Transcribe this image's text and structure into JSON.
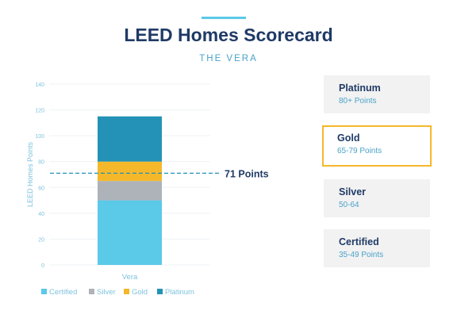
{
  "header": {
    "title": "LEED Homes Scorecard",
    "subtitle": "THE VERA"
  },
  "colors": {
    "title": "#1f3a66",
    "accent": "#5bc9e8",
    "certified": "#5bc9e8",
    "silver": "#aeb3ba",
    "gold": "#f5b82a",
    "platinum": "#2492b6",
    "highlight_border": "#f5b82a"
  },
  "chart_data": {
    "type": "bar",
    "stacked": true,
    "categories": [
      "Vera"
    ],
    "series": [
      {
        "name": "Certified",
        "values": [
          50
        ],
        "color": "#5bc9e8"
      },
      {
        "name": "Silver",
        "values": [
          15
        ],
        "color": "#aeb3ba"
      },
      {
        "name": "Gold",
        "values": [
          15
        ],
        "color": "#f5b82a"
      },
      {
        "name": "Platinum",
        "values": [
          35
        ],
        "color": "#2492b6"
      }
    ],
    "ylabel": "LEED Homes Points",
    "ylim": [
      0,
      140
    ],
    "yticks": [
      0,
      20,
      40,
      60,
      80,
      100,
      120,
      140
    ],
    "reference_line": {
      "value": 71,
      "label": "71 Points"
    },
    "legend_position": "bottom-left"
  },
  "tiers": [
    {
      "name": "Platinum",
      "range": "80+ Points",
      "highlighted": false
    },
    {
      "name": "Gold",
      "range": "65-79 Points",
      "highlighted": true
    },
    {
      "name": "Silver",
      "range": "50-64",
      "highlighted": false
    },
    {
      "name": "Certified",
      "range": "35-49 Points",
      "highlighted": false
    }
  ]
}
